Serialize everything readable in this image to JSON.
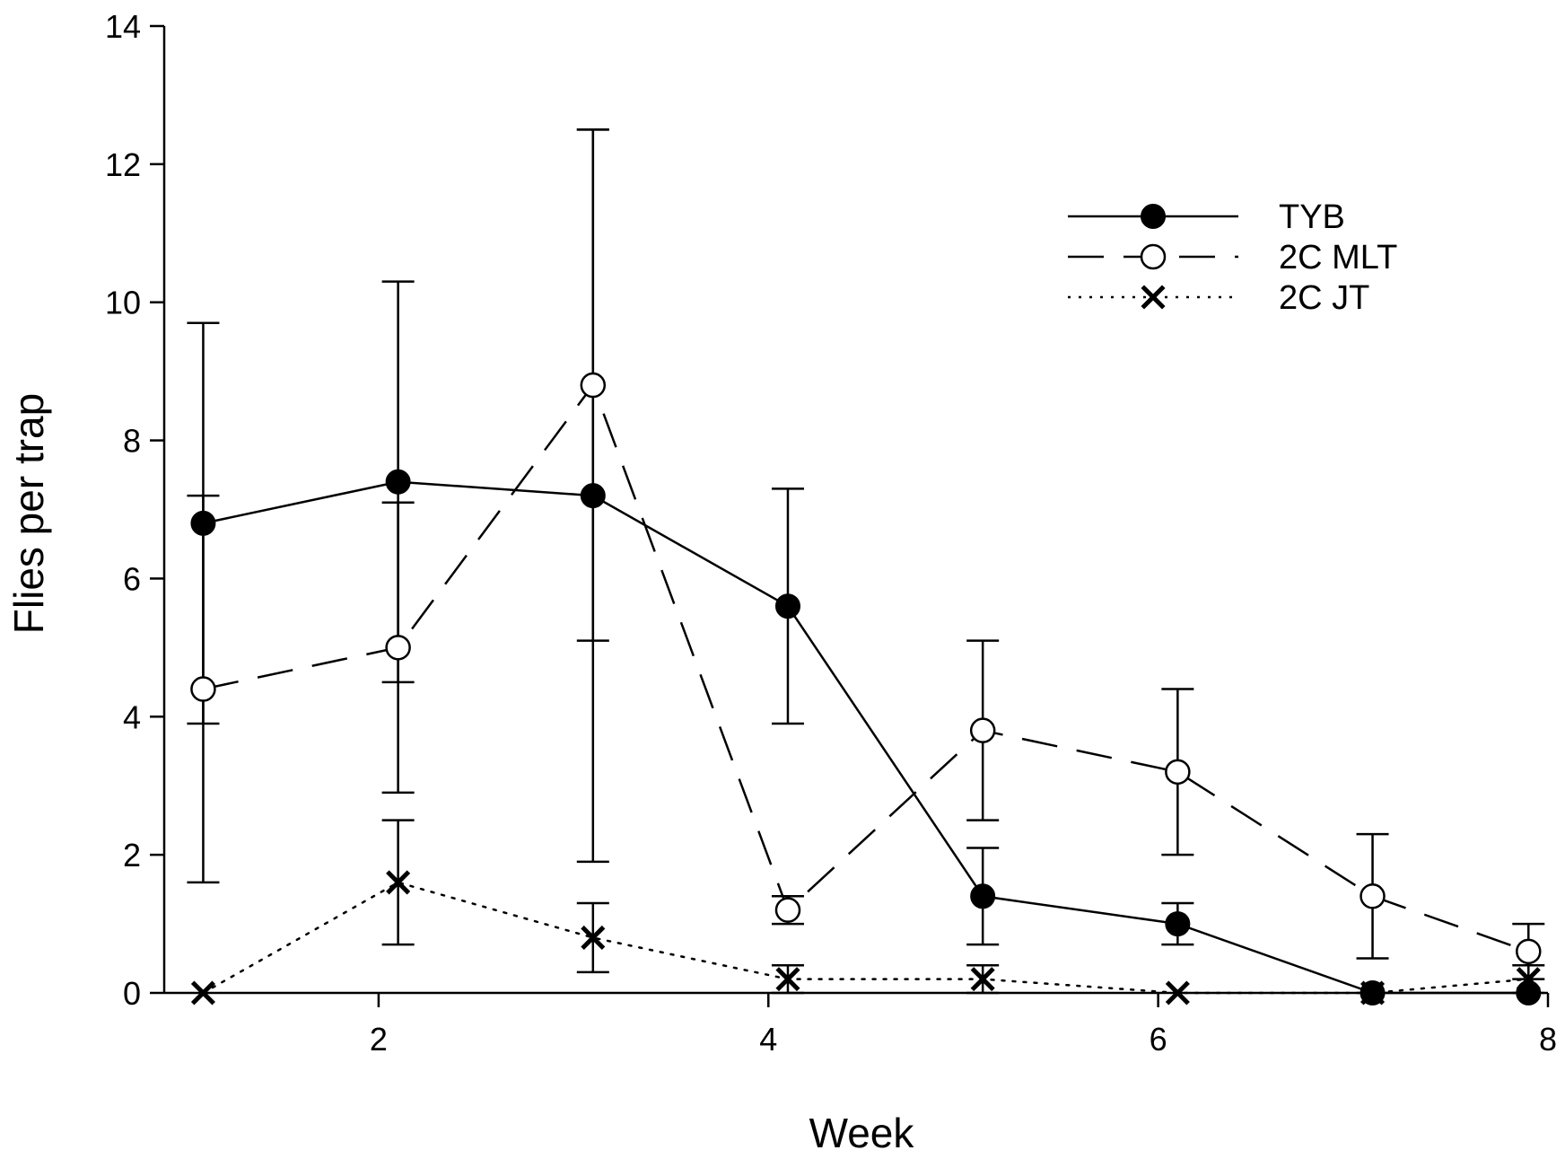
{
  "chart_data": {
    "type": "line",
    "title": "",
    "xlabel": "Week",
    "ylabel": "Flies per trap",
    "xlim": [
      0.9,
      8
    ],
    "ylim": [
      0,
      14
    ],
    "xticks": [
      2,
      4,
      6,
      8
    ],
    "yticks": [
      0,
      2,
      4,
      6,
      8,
      10,
      12,
      14
    ],
    "grid": false,
    "legend_position": "top-right",
    "series": [
      {
        "name": "TYB",
        "line_style": "solid",
        "marker": "filled-circle",
        "x": [
          1.1,
          2.1,
          3.1,
          4.1,
          5.1,
          6.1,
          7.1,
          7.9
        ],
        "values": [
          6.8,
          7.4,
          7.2,
          5.6,
          1.4,
          1.0,
          0.0,
          0.0
        ],
        "error": [
          2.9,
          2.9,
          5.3,
          1.7,
          0.7,
          0.3,
          0.0,
          0.0
        ]
      },
      {
        "name": "2C MLT",
        "line_style": "dashed",
        "marker": "open-circle",
        "x": [
          1.1,
          2.1,
          3.1,
          4.1,
          5.1,
          6.1,
          7.1,
          7.9
        ],
        "values": [
          4.4,
          5.0,
          8.8,
          1.2,
          3.8,
          3.2,
          1.4,
          0.6
        ],
        "error": [
          2.8,
          2.1,
          3.7,
          0.2,
          1.3,
          1.2,
          0.9,
          0.4
        ]
      },
      {
        "name": "2C JT",
        "line_style": "dotted",
        "marker": "x",
        "x": [
          1.1,
          2.1,
          3.1,
          4.1,
          5.1,
          6.1,
          7.1,
          7.9
        ],
        "values": [
          0.0,
          1.6,
          0.8,
          0.2,
          0.2,
          0.0,
          0.0,
          0.2
        ],
        "error": [
          0.0,
          0.9,
          0.5,
          0.2,
          0.2,
          0.0,
          0.0,
          0.2
        ]
      }
    ]
  }
}
